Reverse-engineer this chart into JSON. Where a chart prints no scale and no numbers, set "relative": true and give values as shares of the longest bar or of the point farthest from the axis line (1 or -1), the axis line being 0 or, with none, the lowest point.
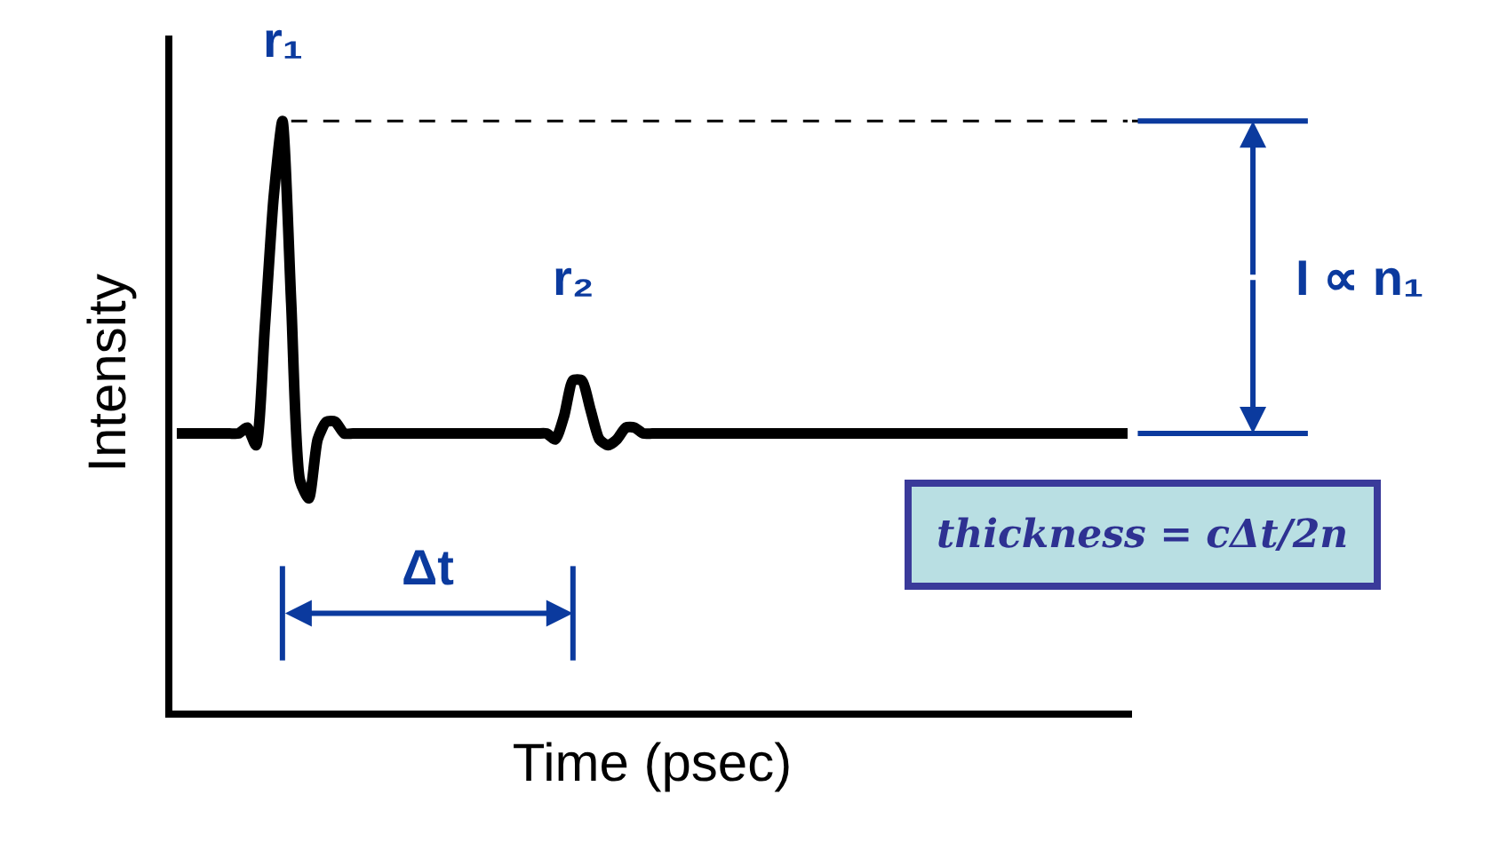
{
  "chart_data": {
    "type": "line",
    "relative": true,
    "xlabel": "Time (psec)",
    "ylabel": "Intensity",
    "marker": "none",
    "line_style": "solid",
    "categories": [
      null,
      null,
      null,
      null,
      null,
      null,
      null,
      null,
      null,
      null,
      null,
      null,
      null,
      null,
      null,
      null,
      null,
      null,
      null,
      null,
      null,
      null,
      null,
      null,
      null,
      null,
      null,
      null,
      null,
      null,
      null,
      null,
      null,
      null,
      null,
      null,
      null,
      null,
      null,
      null,
      null,
      null,
      null,
      null,
      null,
      null,
      null,
      null,
      null,
      null,
      null,
      null,
      null,
      null,
      null,
      null,
      null,
      null,
      null,
      null,
      null,
      null,
      null,
      null,
      null,
      null,
      null,
      null,
      null,
      null,
      null,
      null,
      null,
      null,
      null,
      null,
      null,
      null,
      null,
      null,
      null,
      null,
      null,
      null,
      null,
      null,
      null,
      null,
      null,
      null,
      null,
      null,
      null,
      null,
      null,
      null,
      null,
      null,
      null,
      null,
      null,
      null,
      null,
      null,
      null,
      null,
      null,
      null,
      null
    ],
    "series": [
      {
        "color": "#000000",
        "values": [
          0.47,
          0.47,
          0.47,
          0.47,
          0.47,
          0.47,
          0.47,
          0.47,
          0.48,
          0.45,
          0.65,
          0.87,
          1.0,
          0.69,
          0.39,
          0.36,
          0.46,
          0.49,
          0.49,
          0.47,
          0.47,
          0.47,
          0.47,
          0.47,
          0.47,
          0.47,
          0.47,
          0.47,
          0.47,
          0.47,
          0.47,
          0.47,
          0.47,
          0.47,
          0.47,
          0.47,
          0.47,
          0.47,
          0.47,
          0.47,
          0.47,
          0.47,
          0.47,
          0.46,
          0.5,
          0.56,
          0.56,
          0.51,
          0.46,
          0.45,
          0.46,
          0.48,
          0.48,
          0.47,
          0.47,
          0.47,
          0.47,
          0.47,
          0.47,
          0.47,
          0.47,
          0.47,
          0.47,
          0.47,
          0.47,
          0.47,
          0.47,
          0.47,
          0.47,
          0.47,
          0.47,
          0.47,
          0.47,
          0.47,
          0.47,
          0.47,
          0.47,
          0.47,
          0.47,
          0.47,
          0.47,
          0.47,
          0.47,
          0.47,
          0.47,
          0.47,
          0.47,
          0.47,
          0.47,
          0.47,
          0.47,
          0.47,
          0.47,
          0.47,
          0.47,
          0.47,
          0.47,
          0.47,
          0.47,
          0.47,
          0.47,
          0.47,
          0.47,
          0.47,
          0.47,
          0.47,
          0.47,
          0.47,
          0.47
        ]
      }
    ],
    "ref_lines": [
      {
        "axis": "y",
        "value": 1.0,
        "line_style": "dashed",
        "color": "#000000"
      }
    ],
    "annotations": [
      "r₁",
      "r₂",
      "Δt",
      "I ∝ n₁",
      "thickness = cΔt/2n"
    ]
  }
}
